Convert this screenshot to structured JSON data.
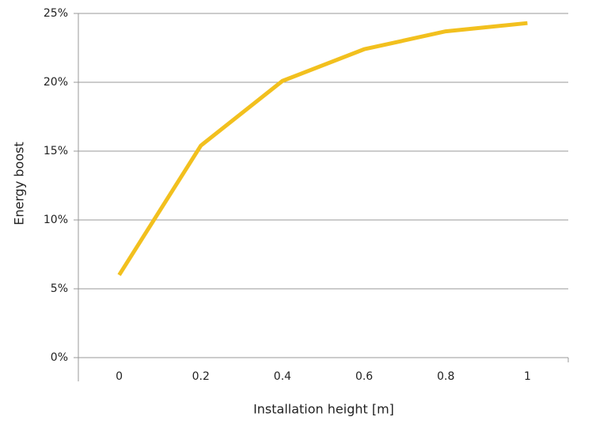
{
  "chart_data": {
    "type": "line",
    "x_label": "Installation height [m]",
    "y_label": "Energy boost",
    "x": [
      0,
      0.2,
      0.4,
      0.6,
      0.8,
      1
    ],
    "series": [
      {
        "name": "Energy boost",
        "color": "#f2c01e",
        "values": [
          6.0,
          15.4,
          20.1,
          22.4,
          23.7,
          24.3
        ]
      }
    ],
    "xlim": [
      -0.1,
      1.1
    ],
    "xticks": [
      0,
      0.2,
      0.4,
      0.6,
      0.8,
      1
    ],
    "ylim": [
      0,
      25
    ],
    "yticks": [
      {
        "value": 0,
        "label": "0%"
      },
      {
        "value": 5,
        "label": "5%"
      },
      {
        "value": 10,
        "label": "10%"
      },
      {
        "value": 15,
        "label": "15%"
      },
      {
        "value": 20,
        "label": "20%"
      },
      {
        "value": 25,
        "label": "25%"
      }
    ],
    "grid": true
  }
}
